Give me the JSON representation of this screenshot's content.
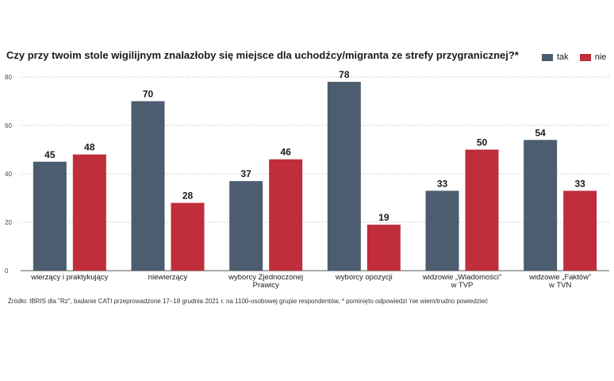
{
  "title": "Czy przy twoim stole wigilijnym znalazłoby się miejsce dla uchodźcy/migranta ze strefy przygranicznej?*",
  "footnote": "Źródło: IBRIS dla \"Rz\", badanie CATI przeprowadzone 17–18 grudnia 2021 r. na 1100-osobowej grupie respondentów, * pominięto odpowiedzi 'nie wiem/trudno powiedzieć",
  "chart_data": {
    "type": "bar",
    "categories": [
      [
        "wierzący i praktykujący"
      ],
      [
        "niewierzący"
      ],
      [
        "wyborcy Zjednoczonej",
        "Prawicy"
      ],
      [
        "wyborcy opozycji"
      ],
      [
        "widzowie „Wiadomości”",
        "w TVP"
      ],
      [
        "widzowie „Faktów”",
        "w TVN"
      ]
    ],
    "series": [
      {
        "name": "tak",
        "color": "#4b5d6e",
        "values": [
          45,
          70,
          37,
          78,
          33,
          54
        ]
      },
      {
        "name": "nie",
        "color": "#bf2e3a",
        "values": [
          48,
          28,
          46,
          19,
          50,
          33
        ]
      }
    ],
    "ylim": [
      0,
      80
    ],
    "yticks": [
      0,
      20,
      40,
      60,
      80
    ],
    "grid": true,
    "legend": "top-right"
  }
}
